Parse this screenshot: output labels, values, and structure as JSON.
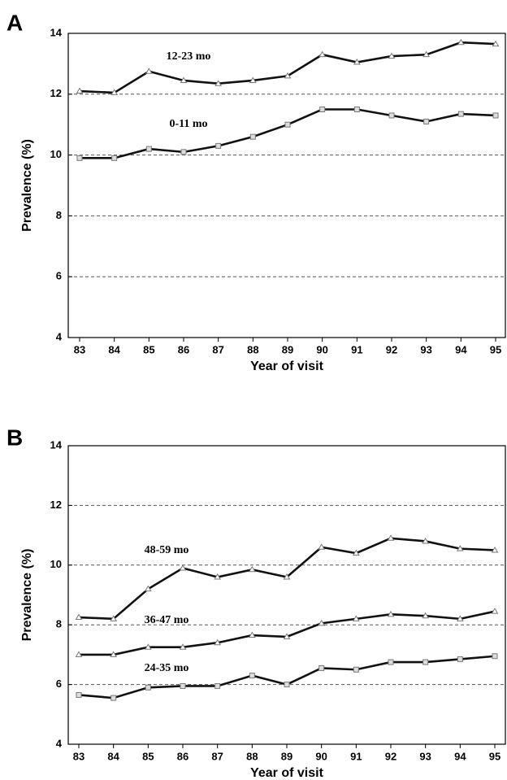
{
  "chart_data": [
    {
      "type": "line",
      "panel": "A",
      "xlabel": "Year of visit",
      "ylabel": "Prevalence (%)",
      "categories": [
        "83",
        "84",
        "85",
        "86",
        "87",
        "88",
        "89",
        "90",
        "91",
        "92",
        "93",
        "94",
        "95"
      ],
      "ylim": [
        4,
        14
      ],
      "yticks": [
        4,
        6,
        8,
        10,
        12,
        14
      ],
      "grid": true,
      "series": [
        {
          "name": "12-23 mo",
          "color": "#111111",
          "marker": "triangle",
          "values": [
            12.1,
            12.05,
            12.75,
            12.45,
            12.35,
            12.45,
            12.6,
            13.3,
            13.05,
            13.25,
            13.3,
            13.7,
            13.65
          ]
        },
        {
          "name": "0-11 mo",
          "color": "#111111",
          "marker": "square",
          "values": [
            9.9,
            9.9,
            10.2,
            10.1,
            10.3,
            10.6,
            11.0,
            11.5,
            11.5,
            11.3,
            11.1,
            11.35,
            11.3
          ]
        }
      ]
    },
    {
      "type": "line",
      "panel": "B",
      "xlabel": "Year of visit",
      "ylabel": "Prevalence (%)",
      "categories": [
        "83",
        "84",
        "85",
        "86",
        "87",
        "88",
        "89",
        "90",
        "91",
        "92",
        "93",
        "94",
        "95"
      ],
      "ylim": [
        4,
        14
      ],
      "yticks": [
        4,
        6,
        8,
        10,
        12,
        14
      ],
      "grid": true,
      "series": [
        {
          "name": "48-59 mo",
          "color": "#111111",
          "marker": "triangle",
          "values": [
            8.25,
            8.2,
            9.2,
            9.9,
            9.6,
            9.85,
            9.6,
            10.6,
            10.4,
            10.9,
            10.8,
            10.55,
            10.5
          ]
        },
        {
          "name": "36-47 mo",
          "color": "#111111",
          "marker": "triangle",
          "values": [
            7.0,
            7.0,
            7.25,
            7.25,
            7.4,
            7.65,
            7.6,
            8.05,
            8.2,
            8.35,
            8.3,
            8.2,
            8.45
          ]
        },
        {
          "name": "24-35 mo",
          "color": "#111111",
          "marker": "square",
          "values": [
            5.65,
            5.55,
            5.9,
            5.95,
            5.95,
            6.3,
            6.0,
            6.55,
            6.5,
            6.75,
            6.75,
            6.85,
            6.95
          ]
        }
      ]
    }
  ]
}
